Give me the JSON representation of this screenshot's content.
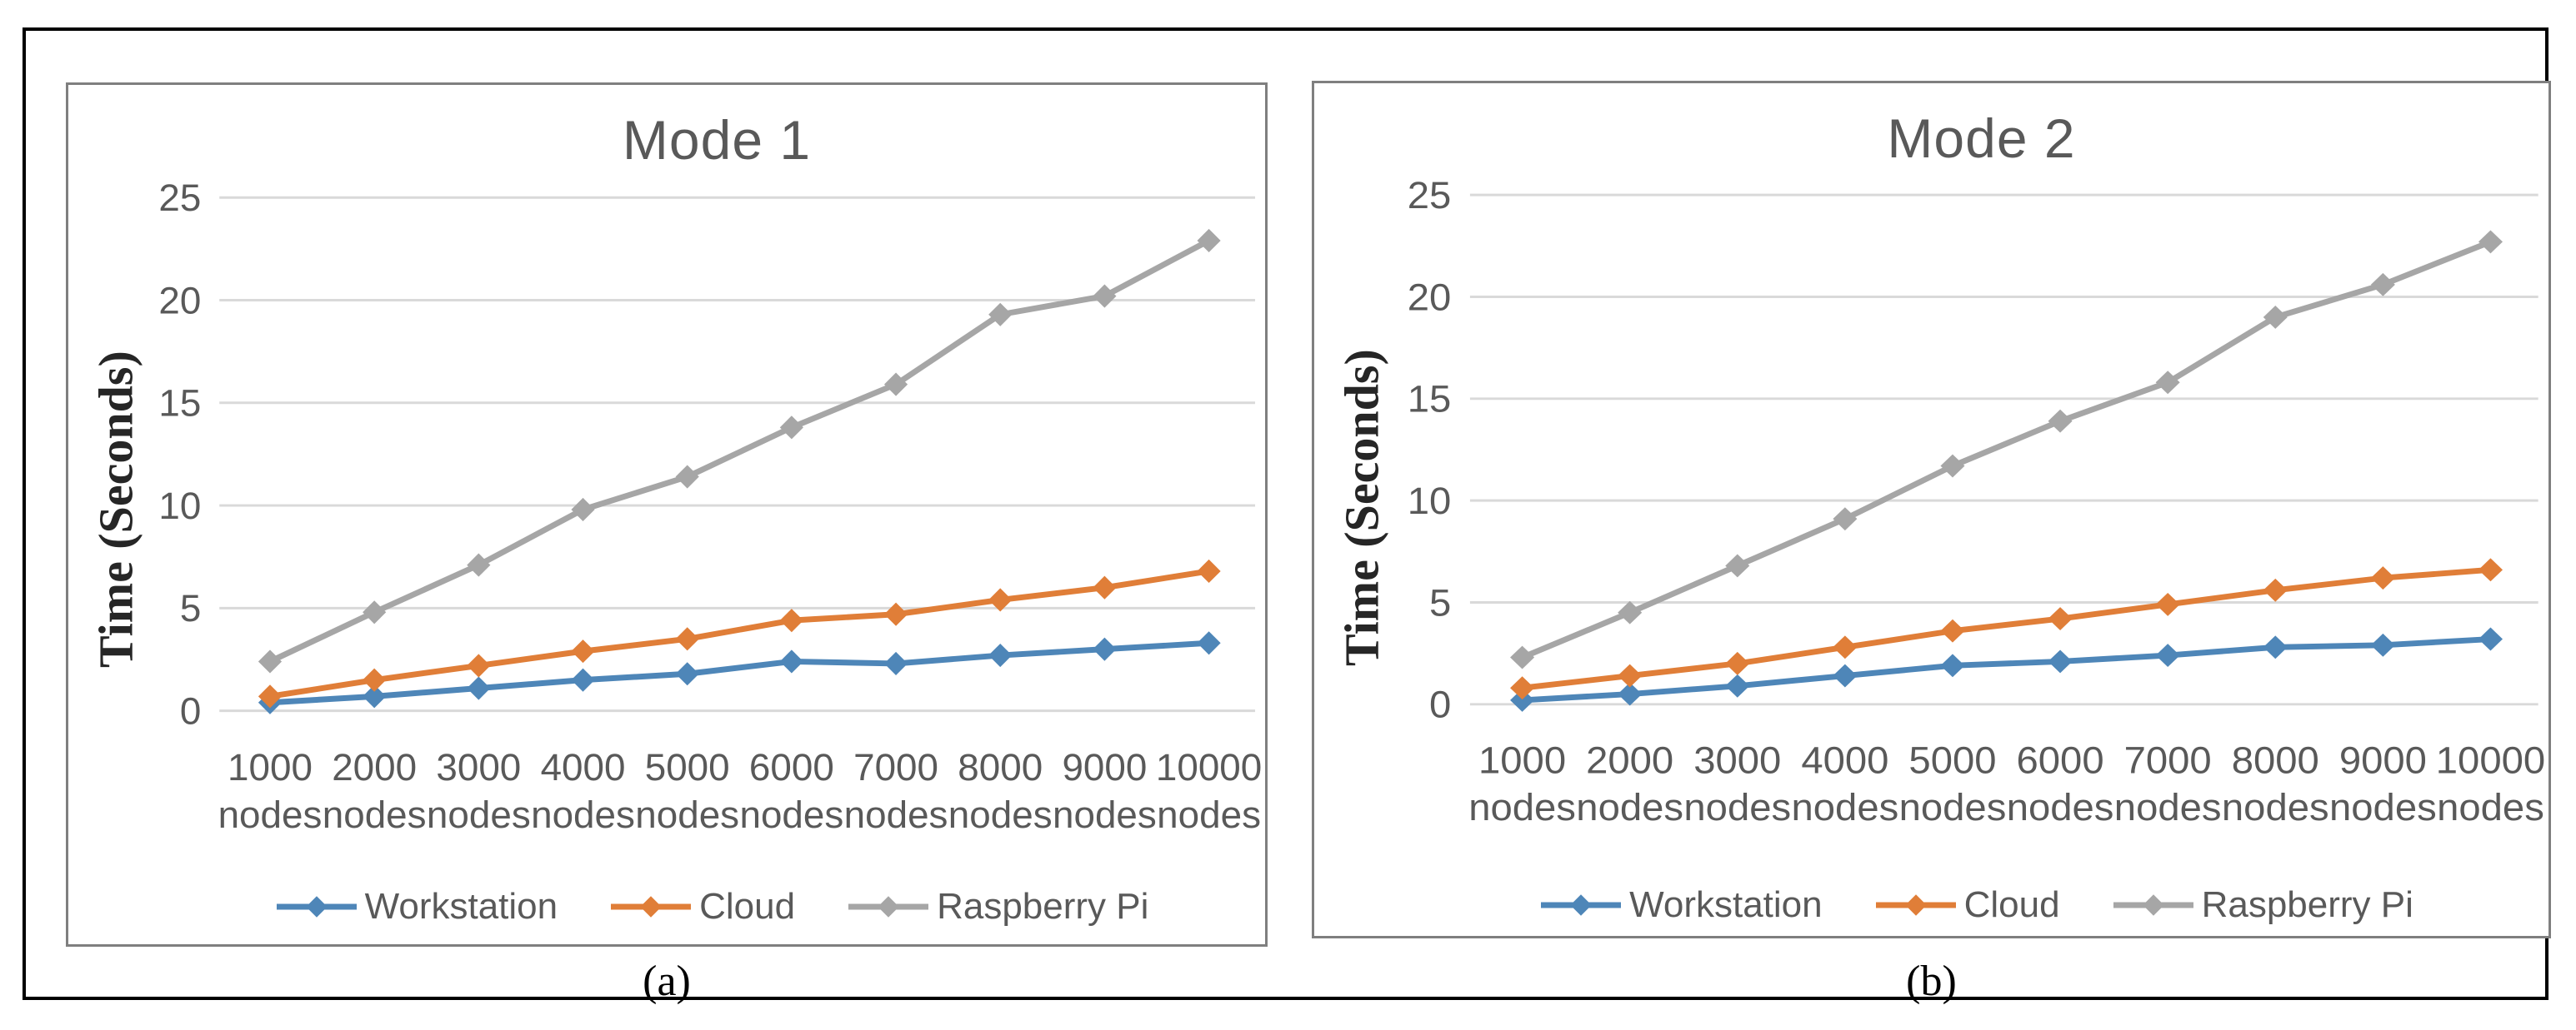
{
  "page": {
    "background": "#ffffff",
    "outer_border_color": "#000000",
    "panel_border_color": "#7f7f7f"
  },
  "colors": {
    "gridline": "#d9d9d9",
    "tick_text": "#595959",
    "title_text": "#595959",
    "axis_title_text": "#262626"
  },
  "chart_data": [
    {
      "type": "line",
      "title": "Mode 1",
      "caption": "(a)",
      "xlabel": "",
      "ylabel": "Time (Seconds)",
      "ylim": [
        0,
        25
      ],
      "yticks": [
        0,
        5,
        10,
        15,
        20,
        25
      ],
      "grid": true,
      "legend_position": "bottom",
      "marker": "diamond",
      "categories": [
        "1000 nodes",
        "2000 nodes",
        "3000 nodes",
        "4000 nodes",
        "5000 nodes",
        "6000 nodes",
        "7000 nodes",
        "8000 nodes",
        "9000 nodes",
        "10000 nodes"
      ],
      "series": [
        {
          "name": "Workstation",
          "color": "#4E86B8",
          "values": [
            0.4,
            0.7,
            1.1,
            1.5,
            1.8,
            2.4,
            2.3,
            2.7,
            3.0,
            3.3
          ]
        },
        {
          "name": "Cloud",
          "color": "#E07E38",
          "values": [
            0.7,
            1.5,
            2.2,
            2.9,
            3.5,
            4.4,
            4.7,
            5.4,
            6.0,
            6.8
          ]
        },
        {
          "name": "Raspberry Pi",
          "color": "#A6A6A6",
          "values": [
            2.4,
            4.8,
            7.1,
            9.8,
            11.4,
            13.8,
            15.9,
            19.3,
            20.2,
            22.9
          ]
        }
      ]
    },
    {
      "type": "line",
      "title": "Mode 2",
      "caption": "(b)",
      "xlabel": "",
      "ylabel": "Time (Seconds)",
      "ylim": [
        0,
        25
      ],
      "yticks": [
        0,
        5,
        10,
        15,
        20,
        25
      ],
      "grid": true,
      "legend_position": "bottom",
      "marker": "diamond",
      "categories": [
        "1000 nodes",
        "2000 nodes",
        "3000 nodes",
        "4000 nodes",
        "5000 nodes",
        "6000 nodes",
        "7000 nodes",
        "8000 nodes",
        "9000 nodes",
        "10000 nodes"
      ],
      "series": [
        {
          "name": "Workstation",
          "color": "#4E86B8",
          "values": [
            0.2,
            0.5,
            0.9,
            1.4,
            1.9,
            2.1,
            2.4,
            2.8,
            2.9,
            3.2
          ]
        },
        {
          "name": "Cloud",
          "color": "#E07E38",
          "values": [
            0.8,
            1.4,
            2.0,
            2.8,
            3.6,
            4.2,
            4.9,
            5.6,
            6.2,
            6.6
          ]
        },
        {
          "name": "Raspberry Pi",
          "color": "#A6A6A6",
          "values": [
            2.3,
            4.5,
            6.8,
            9.1,
            11.7,
            13.9,
            15.8,
            19.0,
            20.6,
            22.7
          ]
        }
      ]
    }
  ]
}
